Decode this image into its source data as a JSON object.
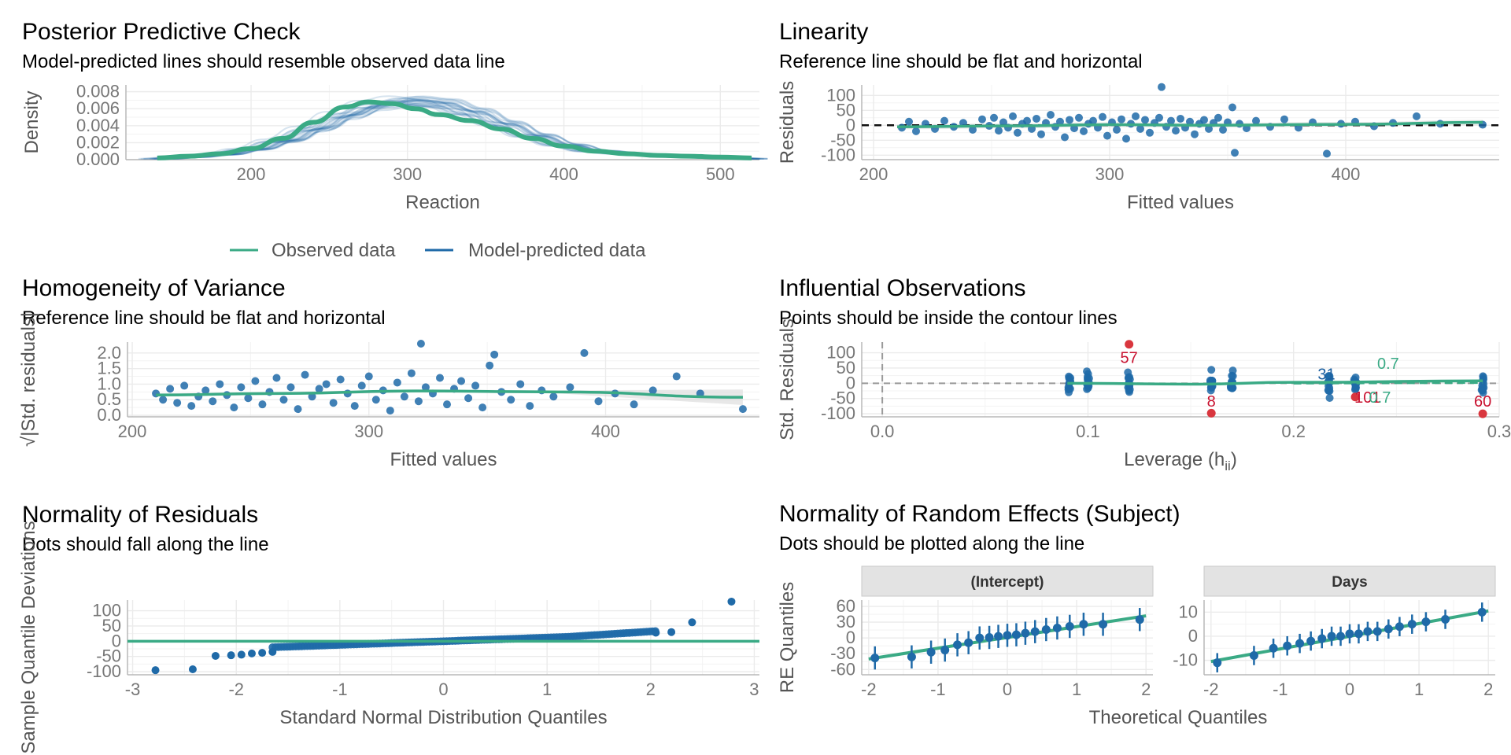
{
  "chart_data": [
    {
      "id": "ppc",
      "type": "line",
      "title": "Posterior Predictive Check",
      "subtitle": "Model-predicted lines should resemble observed data line",
      "xlabel": "Reaction",
      "ylabel": "Density",
      "xlim": [
        120,
        525
      ],
      "ylim": [
        0,
        0.0088
      ],
      "x_ticks": [
        200,
        300,
        400,
        500
      ],
      "y_ticks": [
        0.0,
        0.002,
        0.004,
        0.006,
        0.008
      ],
      "y_tick_labels": [
        "0.000",
        "0.002",
        "0.004",
        "0.006",
        "0.008"
      ],
      "legend": {
        "position": "bottom",
        "entries": [
          "Observed data",
          "Model-predicted data"
        ]
      },
      "series": [
        {
          "name": "Observed data",
          "color": "#3aaa85",
          "x": [
            140,
            160,
            180,
            200,
            220,
            240,
            260,
            275,
            290,
            305,
            320,
            340,
            360,
            380,
            400,
            420,
            440,
            460,
            480,
            500,
            520
          ],
          "y": [
            0.0002,
            0.0004,
            0.0007,
            0.0013,
            0.0025,
            0.0044,
            0.0062,
            0.0068,
            0.0066,
            0.006,
            0.0053,
            0.0046,
            0.0036,
            0.0025,
            0.0016,
            0.001,
            0.0007,
            0.0005,
            0.0004,
            0.0003,
            0.0002
          ]
        },
        {
          "name": "Model-predicted data",
          "color": "#1f6aa8",
          "x": [
            140,
            160,
            180,
            200,
            220,
            240,
            260,
            280,
            300,
            320,
            340,
            360,
            380,
            400,
            420,
            440,
            460,
            480,
            500,
            520
          ],
          "y": [
            0.0001,
            0.0003,
            0.0006,
            0.0012,
            0.0022,
            0.0036,
            0.0052,
            0.0064,
            0.0069,
            0.0066,
            0.0056,
            0.0042,
            0.0028,
            0.0017,
            0.001,
            0.0007,
            0.0005,
            0.0003,
            0.0002,
            0.0001
          ]
        }
      ]
    },
    {
      "id": "linearity",
      "type": "scatter",
      "title": "Linearity",
      "subtitle": "Reference line should be flat and horizontal",
      "xlabel": "Fitted values",
      "ylabel": "Residuals",
      "xlim": [
        195,
        465
      ],
      "ylim": [
        -115,
        135
      ],
      "x_ticks": [
        200,
        300,
        400
      ],
      "y_ticks": [
        -100,
        -50,
        0,
        50,
        100
      ],
      "reference_line": 0,
      "points": [
        [
          212,
          -8
        ],
        [
          215,
          12
        ],
        [
          218,
          -20
        ],
        [
          222,
          5
        ],
        [
          226,
          -12
        ],
        [
          230,
          15
        ],
        [
          234,
          -5
        ],
        [
          238,
          8
        ],
        [
          242,
          -15
        ],
        [
          246,
          20
        ],
        [
          249,
          -2
        ],
        [
          251,
          25
        ],
        [
          253,
          -18
        ],
        [
          255,
          10
        ],
        [
          257,
          -8
        ],
        [
          259,
          30
        ],
        [
          261,
          -25
        ],
        [
          263,
          5
        ],
        [
          265,
          15
        ],
        [
          267,
          -12
        ],
        [
          269,
          22
        ],
        [
          271,
          -30
        ],
        [
          273,
          8
        ],
        [
          275,
          35
        ],
        [
          277,
          -5
        ],
        [
          279,
          12
        ],
        [
          281,
          -40
        ],
        [
          283,
          18
        ],
        [
          285,
          -10
        ],
        [
          287,
          25
        ],
        [
          289,
          -20
        ],
        [
          291,
          5
        ],
        [
          293,
          15
        ],
        [
          295,
          -8
        ],
        [
          297,
          28
        ],
        [
          299,
          -35
        ],
        [
          301,
          10
        ],
        [
          303,
          -15
        ],
        [
          305,
          20
        ],
        [
          307,
          -45
        ],
        [
          309,
          5
        ],
        [
          311,
          30
        ],
        [
          313,
          -12
        ],
        [
          315,
          18
        ],
        [
          317,
          -25
        ],
        [
          319,
          8
        ],
        [
          321,
          25
        ],
        [
          322,
          128
        ],
        [
          324,
          -5
        ],
        [
          326,
          15
        ],
        [
          328,
          -18
        ],
        [
          330,
          22
        ],
        [
          332,
          -8
        ],
        [
          334,
          12
        ],
        [
          336,
          -30
        ],
        [
          338,
          5
        ],
        [
          340,
          18
        ],
        [
          342,
          -12
        ],
        [
          344,
          8
        ],
        [
          346,
          25
        ],
        [
          348,
          -15
        ],
        [
          350,
          10
        ],
        [
          352,
          60
        ],
        [
          353,
          -92
        ],
        [
          355,
          5
        ],
        [
          358,
          -10
        ],
        [
          362,
          15
        ],
        [
          368,
          -5
        ],
        [
          374,
          20
        ],
        [
          380,
          -8
        ],
        [
          386,
          10
        ],
        [
          392,
          -95
        ],
        [
          398,
          5
        ],
        [
          404,
          12
        ],
        [
          412,
          -3
        ],
        [
          420,
          8
        ],
        [
          430,
          30
        ],
        [
          440,
          5
        ],
        [
          458,
          2
        ]
      ],
      "smooth": [
        [
          210,
          -5
        ],
        [
          260,
          -2
        ],
        [
          300,
          2
        ],
        [
          340,
          0
        ],
        [
          400,
          3
        ],
        [
          458,
          10
        ]
      ]
    },
    {
      "id": "homogeneity",
      "type": "scatter",
      "title": "Homogeneity of Variance",
      "subtitle": "Reference line should be flat and horizontal",
      "xlabel": "Fitted values",
      "ylabel": "√|Std. residuals|",
      "xlim": [
        198,
        465
      ],
      "ylim": [
        -0.05,
        2.35
      ],
      "x_ticks": [
        200,
        300,
        400
      ],
      "y_ticks": [
        0.0,
        0.5,
        1.0,
        1.5,
        2.0
      ],
      "y_tick_labels": [
        "0.0",
        "0.5",
        "1.0",
        "1.5",
        "2.0"
      ],
      "points": [
        [
          210,
          0.7
        ],
        [
          213,
          0.5
        ],
        [
          216,
          0.85
        ],
        [
          219,
          0.4
        ],
        [
          222,
          0.95
        ],
        [
          225,
          0.3
        ],
        [
          228,
          0.6
        ],
        [
          231,
          0.8
        ],
        [
          234,
          0.45
        ],
        [
          237,
          1.0
        ],
        [
          240,
          0.65
        ],
        [
          243,
          0.25
        ],
        [
          246,
          0.9
        ],
        [
          249,
          0.55
        ],
        [
          252,
          1.1
        ],
        [
          255,
          0.35
        ],
        [
          258,
          0.75
        ],
        [
          261,
          1.2
        ],
        [
          264,
          0.5
        ],
        [
          267,
          0.9
        ],
        [
          270,
          0.2
        ],
        [
          273,
          1.3
        ],
        [
          276,
          0.6
        ],
        [
          279,
          0.85
        ],
        [
          282,
          1.0
        ],
        [
          285,
          0.4
        ],
        [
          288,
          1.15
        ],
        [
          291,
          0.7
        ],
        [
          294,
          0.3
        ],
        [
          297,
          0.95
        ],
        [
          300,
          1.25
        ],
        [
          303,
          0.5
        ],
        [
          306,
          0.8
        ],
        [
          309,
          0.15
        ],
        [
          312,
          1.05
        ],
        [
          315,
          0.6
        ],
        [
          318,
          1.35
        ],
        [
          321,
          0.45
        ],
        [
          322,
          2.3
        ],
        [
          324,
          0.9
        ],
        [
          327,
          0.7
        ],
        [
          330,
          1.2
        ],
        [
          333,
          0.35
        ],
        [
          336,
          0.85
        ],
        [
          339,
          1.1
        ],
        [
          342,
          0.55
        ],
        [
          345,
          0.95
        ],
        [
          348,
          0.25
        ],
        [
          351,
          1.6
        ],
        [
          353,
          1.95
        ],
        [
          356,
          0.75
        ],
        [
          360,
          0.5
        ],
        [
          364,
          1.0
        ],
        [
          368,
          0.3
        ],
        [
          373,
          0.8
        ],
        [
          378,
          0.6
        ],
        [
          385,
          0.9
        ],
        [
          391,
          2.0
        ],
        [
          397,
          0.45
        ],
        [
          404,
          0.7
        ],
        [
          412,
          0.35
        ],
        [
          420,
          0.8
        ],
        [
          430,
          1.25
        ],
        [
          440,
          0.7
        ],
        [
          458,
          0.2
        ]
      ],
      "smooth": [
        [
          210,
          0.65
        ],
        [
          260,
          0.7
        ],
        [
          320,
          0.78
        ],
        [
          380,
          0.75
        ],
        [
          458,
          0.58
        ]
      ]
    },
    {
      "id": "influential",
      "type": "scatter",
      "title": "Influential Observations",
      "subtitle": "Points should be inside the contour lines",
      "xlabel": "Leverage (h",
      "xlabel_sub": "ii",
      "xlabel_end": ")",
      "ylabel": "Std. Residuals",
      "xlim": [
        -0.01,
        0.3
      ],
      "ylim": [
        -110,
        135
      ],
      "x_ticks": [
        0.0,
        0.1,
        0.2,
        0.3
      ],
      "x_tick_labels": [
        "0.0",
        "0.1",
        "0.2",
        "0.3"
      ],
      "y_ticks": [
        -100,
        -50,
        0,
        50,
        100
      ],
      "leverage_columns": [
        0.091,
        0.1,
        0.12,
        0.16,
        0.17,
        0.217,
        0.23,
        0.292
      ],
      "contour_levels": [
        "0.5",
        "0.7"
      ],
      "highlight_points": [
        [
          0.12,
          128
        ],
        [
          0.16,
          -98
        ],
        [
          0.23,
          -45
        ],
        [
          0.292,
          -100
        ]
      ],
      "labels": [
        {
          "text": "57",
          "x": 0.12,
          "y": 85,
          "color": "red"
        },
        {
          "text": "8",
          "x": 0.16,
          "y": -58,
          "color": "red"
        },
        {
          "text": "101",
          "x": 0.236,
          "y": -45,
          "color": "red"
        },
        {
          "text": "60",
          "x": 0.292,
          "y": -58,
          "color": "red"
        },
        {
          "text": "31",
          "x": 0.216,
          "y": 30,
          "color": "blue"
        },
        {
          "text": "0.7",
          "x": 0.246,
          "y": 65,
          "color": "green"
        },
        {
          "text": "0.7",
          "x": 0.242,
          "y": -45,
          "color": "green"
        }
      ],
      "smooth": [
        [
          0.09,
          0
        ],
        [
          0.15,
          -3
        ],
        [
          0.2,
          3
        ],
        [
          0.292,
          8
        ]
      ]
    },
    {
      "id": "qq",
      "type": "scatter",
      "title": "Normality of Residuals",
      "subtitle": "Dots should fall along the line",
      "xlabel": "Standard Normal Distribution Quantiles",
      "ylabel": "Sample Quantile Deviations",
      "xlim": [
        -3.05,
        3.05
      ],
      "ylim": [
        -110,
        135
      ],
      "x_ticks": [
        -3,
        -2,
        -1,
        0,
        1,
        2,
        3
      ],
      "y_ticks": [
        -100,
        -50,
        0,
        50,
        100
      ],
      "reference_line": 0,
      "extremes": [
        [
          -2.78,
          -95
        ],
        [
          -2.42,
          -92
        ],
        [
          -2.2,
          -48
        ],
        [
          -2.05,
          -46
        ],
        [
          -1.95,
          -44
        ],
        [
          -1.85,
          -40
        ],
        [
          -1.75,
          -38
        ],
        [
          -1.65,
          -35
        ],
        [
          2.05,
          28
        ],
        [
          2.2,
          30
        ],
        [
          2.4,
          62
        ],
        [
          2.78,
          130
        ]
      ]
    },
    {
      "id": "re_intercept",
      "type": "scatter",
      "title": "Normality of Random Effects (Subject)",
      "subtitle": "Dots should be plotted along the line",
      "panel": "(Intercept)",
      "xlabel": "Theoretical Quantiles",
      "ylabel": "RE Quantiles",
      "xlim": [
        -2.1,
        2.1
      ],
      "ylim": [
        -70,
        72
      ],
      "x_ticks": [
        -2,
        -1,
        0,
        1,
        2
      ],
      "y_ticks": [
        -60,
        -30,
        0,
        30,
        60
      ],
      "points": [
        [
          -1.91,
          -38
        ],
        [
          -1.38,
          -36
        ],
        [
          -1.1,
          -27
        ],
        [
          -0.9,
          -23
        ],
        [
          -0.72,
          -13
        ],
        [
          -0.56,
          -9
        ],
        [
          -0.4,
          0
        ],
        [
          -0.26,
          1
        ],
        [
          -0.13,
          3
        ],
        [
          0,
          5
        ],
        [
          0.13,
          6
        ],
        [
          0.26,
          9
        ],
        [
          0.4,
          12
        ],
        [
          0.56,
          16
        ],
        [
          0.72,
          19
        ],
        [
          0.9,
          22
        ],
        [
          1.1,
          26
        ],
        [
          1.38,
          26
        ],
        [
          1.91,
          35
        ]
      ],
      "err": 22,
      "line": [
        [
          -2,
          -40
        ],
        [
          2,
          42
        ]
      ]
    },
    {
      "id": "re_days",
      "type": "scatter",
      "panel": "Days",
      "xlim": [
        -2.1,
        2.1
      ],
      "ylim": [
        -16,
        15
      ],
      "x_ticks": [
        -2,
        -1,
        0,
        1,
        2
      ],
      "y_ticks": [
        -10,
        0,
        10
      ],
      "points": [
        [
          -1.91,
          -11
        ],
        [
          -1.38,
          -8
        ],
        [
          -1.1,
          -5
        ],
        [
          -0.9,
          -4
        ],
        [
          -0.72,
          -3
        ],
        [
          -0.56,
          -2
        ],
        [
          -0.4,
          -1
        ],
        [
          -0.26,
          0
        ],
        [
          -0.13,
          0
        ],
        [
          0,
          1
        ],
        [
          0.13,
          1
        ],
        [
          0.26,
          2
        ],
        [
          0.4,
          2
        ],
        [
          0.56,
          3
        ],
        [
          0.72,
          4
        ],
        [
          0.9,
          5
        ],
        [
          1.1,
          6
        ],
        [
          1.38,
          7
        ],
        [
          1.91,
          10
        ]
      ],
      "err": 4,
      "line": [
        [
          -2,
          -10.5
        ],
        [
          2,
          10.5
        ]
      ]
    }
  ]
}
